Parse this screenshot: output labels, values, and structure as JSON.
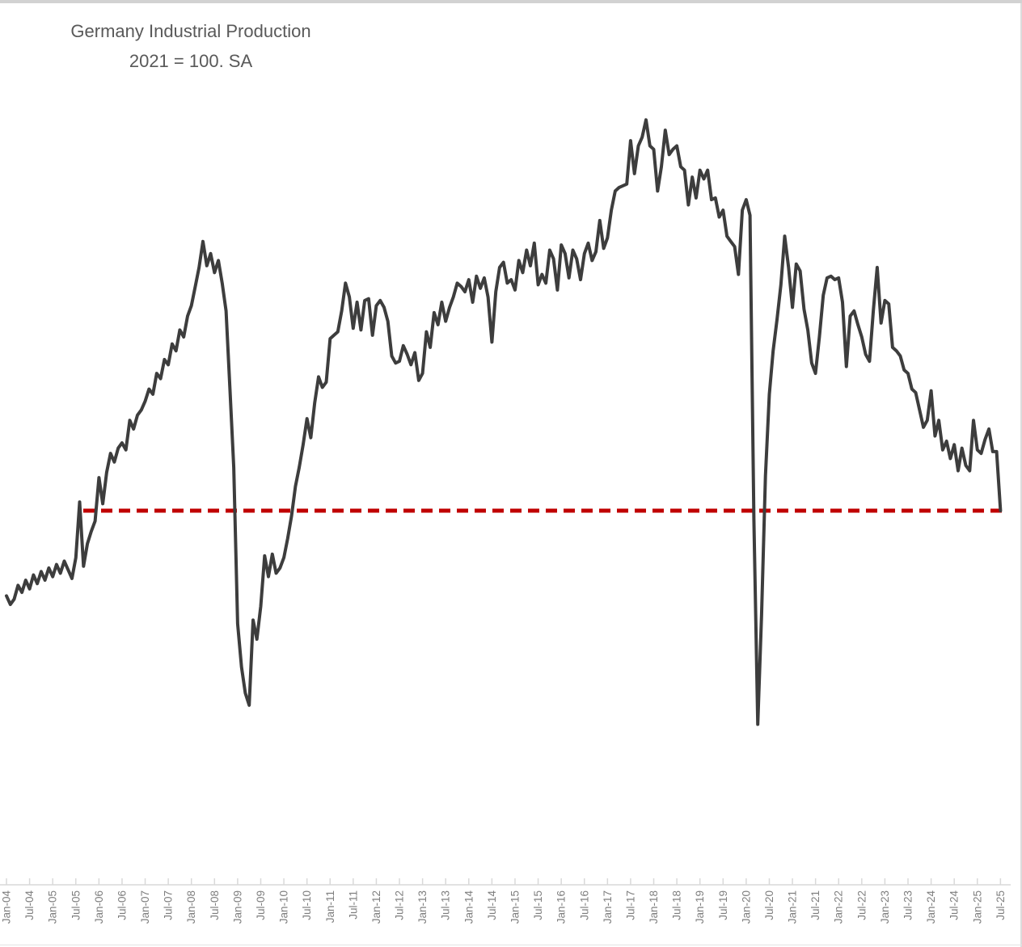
{
  "window": {
    "background": "#ffffff",
    "border_color": "#d2d2d2"
  },
  "title": {
    "line1": "Germany Industrial Production",
    "line2": "2021 = 100. SA",
    "color": "#595959"
  },
  "axis": {
    "line_color": "#d9d9d9",
    "tick_label_color": "#7f7f7f"
  },
  "chart_data": {
    "type": "line",
    "title": "Germany Industrial Production",
    "subtitle": "2021 = 100. SA",
    "frequency": "monthly",
    "x_start": "Jan-2004",
    "x_end": "Jul-2025",
    "x_tick_labels": [
      "Jan-04",
      "Jul-04",
      "Jan-05",
      "Jul-05",
      "Jan-06",
      "Jul-06",
      "Jan-07",
      "Jul-07",
      "Jan-08",
      "Jul-08",
      "Jan-09",
      "Jul-09",
      "Jan-10",
      "Jul-10",
      "Jan-11",
      "Jul-11",
      "Jan-12",
      "Jul-12",
      "Jan-13",
      "Jul-13",
      "Jan-14",
      "Jul-14",
      "Jan-15",
      "Jul-15",
      "Jan-16",
      "Jul-16",
      "Jan-17",
      "Jul-17",
      "Jan-18",
      "Jul-18",
      "Jan-19",
      "Jul-19",
      "Jan-20",
      "Jul-20",
      "Jan-21",
      "Jul-21",
      "Jan-22",
      "Jul-22",
      "Jan-23",
      "Jul-23",
      "Jan-24",
      "Jul-24",
      "Jan-25",
      "Jul-25"
    ],
    "ylim": [
      69,
      118.5
    ],
    "grid": false,
    "legend": false,
    "series": [
      {
        "name": "Germany industrial production index (2021 = 100, seasonally adjusted)",
        "color": "#3d3d3d",
        "values": [
          85.6,
          85.1,
          85.4,
          86.2,
          85.8,
          86.5,
          86.0,
          86.8,
          86.3,
          87.0,
          86.5,
          87.2,
          86.7,
          87.4,
          86.9,
          87.6,
          87.1,
          86.6,
          87.8,
          91.0,
          87.3,
          88.6,
          89.3,
          89.9,
          92.4,
          90.9,
          92.7,
          93.8,
          93.3,
          94.1,
          94.4,
          94.0,
          95.7,
          95.2,
          96.0,
          96.3,
          96.8,
          97.5,
          97.2,
          98.4,
          98.1,
          99.2,
          98.9,
          100.1,
          99.7,
          100.9,
          100.5,
          101.7,
          102.3,
          103.4,
          104.5,
          106.0,
          104.6,
          105.3,
          104.2,
          104.9,
          103.6,
          102.0,
          97.5,
          93.0,
          84.0,
          81.5,
          80.0,
          79.3,
          84.2,
          83.1,
          85.0,
          87.9,
          86.7,
          88.0,
          86.9,
          87.2,
          87.8,
          88.9,
          90.2,
          91.9,
          93.0,
          94.3,
          95.8,
          94.7,
          96.7,
          98.2,
          97.6,
          97.9,
          100.4,
          100.6,
          100.8,
          102.0,
          103.6,
          102.8,
          101.0,
          102.5,
          100.9,
          102.6,
          102.7,
          100.6,
          102.3,
          102.6,
          102.2,
          101.4,
          99.4,
          99.0,
          99.1,
          100.0,
          99.5,
          98.9,
          99.6,
          98.0,
          98.4,
          100.8,
          99.9,
          101.9,
          101.2,
          102.5,
          101.4,
          102.2,
          102.8,
          103.6,
          103.4,
          103.1,
          103.8,
          102.5,
          104.0,
          103.3,
          103.9,
          102.8,
          100.2,
          103.1,
          104.5,
          104.8,
          103.6,
          103.8,
          103.2,
          104.9,
          104.2,
          105.5,
          104.6,
          105.9,
          103.5,
          104.1,
          103.6,
          105.5,
          105.0,
          103.2,
          105.8,
          105.3,
          103.9,
          105.5,
          105.0,
          103.8,
          105.3,
          105.9,
          104.9,
          105.4,
          107.2,
          105.6,
          106.2,
          107.8,
          108.9,
          109.1,
          109.2,
          109.3,
          111.8,
          109.9,
          111.5,
          112.0,
          113.0,
          111.5,
          111.3,
          108.9,
          110.3,
          112.4,
          111.0,
          111.3,
          111.5,
          110.3,
          110.1,
          108.1,
          109.7,
          108.5,
          110.1,
          109.6,
          110.1,
          108.4,
          108.5,
          107.4,
          107.8,
          106.3,
          106.0,
          105.7,
          104.1,
          107.8,
          108.4,
          107.5,
          90.0,
          78.2,
          84.5,
          92.5,
          97.2,
          99.7,
          101.5,
          103.5,
          106.3,
          104.5,
          102.2,
          104.7,
          104.3,
          102.1,
          100.9,
          99.0,
          98.4,
          100.5,
          102.9,
          103.9,
          104.0,
          103.8,
          103.9,
          102.5,
          98.8,
          101.7,
          102.0,
          101.2,
          100.5,
          99.5,
          99.1,
          102.0,
          104.5,
          101.3,
          102.6,
          102.4,
          99.9,
          99.7,
          99.4,
          98.6,
          98.4,
          97.5,
          97.3,
          96.3,
          95.3,
          95.7,
          97.4,
          94.8,
          95.7,
          94.0,
          94.5,
          93.5,
          94.3,
          92.8,
          94.1,
          93.1,
          92.8,
          95.7,
          94.0,
          93.8,
          94.6,
          95.2,
          93.9,
          93.9,
          90.5
        ]
      }
    ],
    "reference_line": {
      "value": 90.5,
      "color": "#c00000",
      "style": "dashed",
      "from": "Sep-05",
      "to": "Jul-25"
    }
  }
}
